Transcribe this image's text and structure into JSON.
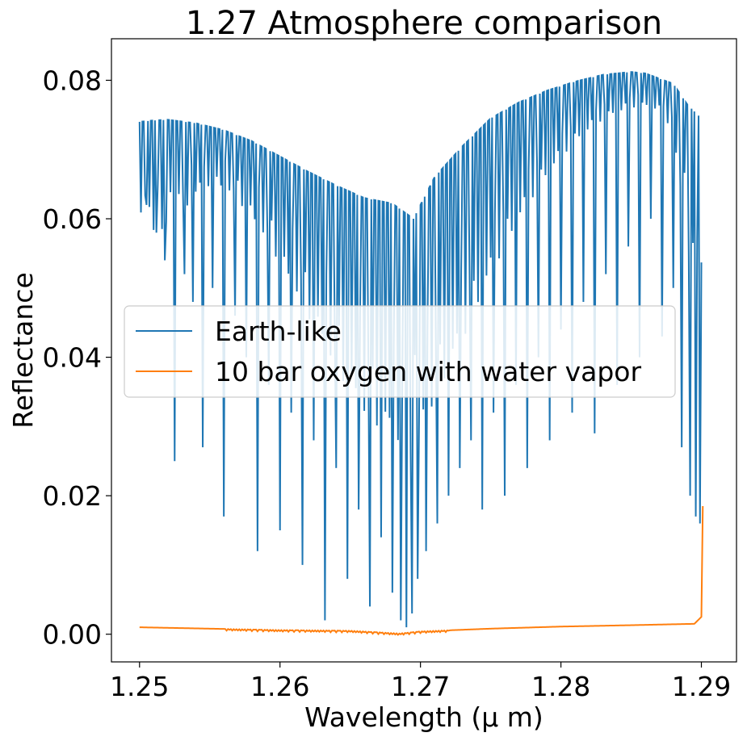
{
  "chart_data": {
    "type": "line",
    "title": "1.27 Atmosphere comparison",
    "xlabel": "Wavelength (μ m)",
    "ylabel": "Reflectance",
    "xlim": [
      1.248,
      1.2925
    ],
    "ylim": [
      -0.004,
      0.086
    ],
    "xticks": [
      1.25,
      1.26,
      1.27,
      1.28,
      1.29
    ],
    "xtick_labels": [
      "1.25",
      "1.26",
      "1.27",
      "1.28",
      "1.29"
    ],
    "yticks": [
      0.0,
      0.02,
      0.04,
      0.06,
      0.08
    ],
    "ytick_labels": [
      "0.00",
      "0.02",
      "0.04",
      "0.06",
      "0.08"
    ],
    "grid": false,
    "legend_position": "center-left",
    "series": [
      {
        "name": "Earth-like",
        "color": "#1f77b4",
        "continuum": {
          "x": [
            1.25,
            1.251,
            1.252,
            1.254,
            1.256,
            1.258,
            1.26,
            1.262,
            1.264,
            1.266,
            1.268,
            1.2695,
            1.271,
            1.273,
            1.275,
            1.277,
            1.279,
            1.281,
            1.283,
            1.285,
            1.286,
            1.288,
            1.289,
            1.29
          ],
          "y": [
            0.074,
            0.0742,
            0.0743,
            0.0738,
            0.0728,
            0.0712,
            0.069,
            0.0668,
            0.0648,
            0.063,
            0.0622,
            0.06,
            0.066,
            0.0705,
            0.0745,
            0.0768,
            0.0785,
            0.0798,
            0.0808,
            0.0812,
            0.081,
            0.0795,
            0.0765,
            0.0745
          ]
        },
        "absorption_lines": {
          "x": [
            1.2505,
            1.2512,
            1.2518,
            1.2525,
            1.2532,
            1.2538,
            1.2545,
            1.2552,
            1.256,
            1.2568,
            1.2576,
            1.2584,
            1.2592,
            1.26,
            1.2608,
            1.2616,
            1.2624,
            1.2632,
            1.264,
            1.2648,
            1.2656,
            1.2664,
            1.2672,
            1.268,
            1.2686,
            1.269,
            1.2694,
            1.2698,
            1.2704,
            1.2712,
            1.272,
            1.2728,
            1.2736,
            1.2744,
            1.2752,
            1.276,
            1.2768,
            1.2776,
            1.2784,
            1.2792,
            1.28,
            1.2808,
            1.2816,
            1.2824,
            1.2832,
            1.284,
            1.2848,
            1.2856,
            1.2864,
            1.2872,
            1.288,
            1.2886,
            1.2892,
            1.2896,
            1.2899
          ],
          "y": [
            0.062,
            0.058,
            0.054,
            0.025,
            0.052,
            0.048,
            0.027,
            0.05,
            0.017,
            0.046,
            0.04,
            0.012,
            0.036,
            0.015,
            0.032,
            0.01,
            0.028,
            0.002,
            0.024,
            0.008,
            0.018,
            0.004,
            0.014,
            0.006,
            0.002,
            0.001,
            0.003,
            0.008,
            0.012,
            0.016,
            0.02,
            0.024,
            0.028,
            0.018,
            0.032,
            0.02,
            0.036,
            0.024,
            0.04,
            0.028,
            0.044,
            0.032,
            0.048,
            0.029,
            0.052,
            0.036,
            0.056,
            0.04,
            0.06,
            0.043,
            0.05,
            0.027,
            0.02,
            0.017,
            0.016
          ]
        }
      },
      {
        "name": "10 bar oxygen with water vapor",
        "color": "#ff7f0e",
        "x": [
          1.25,
          1.255,
          1.26,
          1.265,
          1.2685,
          1.27,
          1.275,
          1.28,
          1.285,
          1.2895,
          1.29,
          1.2901
        ],
        "y": [
          0.001,
          0.0008,
          0.0006,
          0.0005,
          0.0001,
          0.0004,
          0.0008,
          0.0011,
          0.0013,
          0.0015,
          0.0025,
          0.0185
        ]
      }
    ]
  }
}
